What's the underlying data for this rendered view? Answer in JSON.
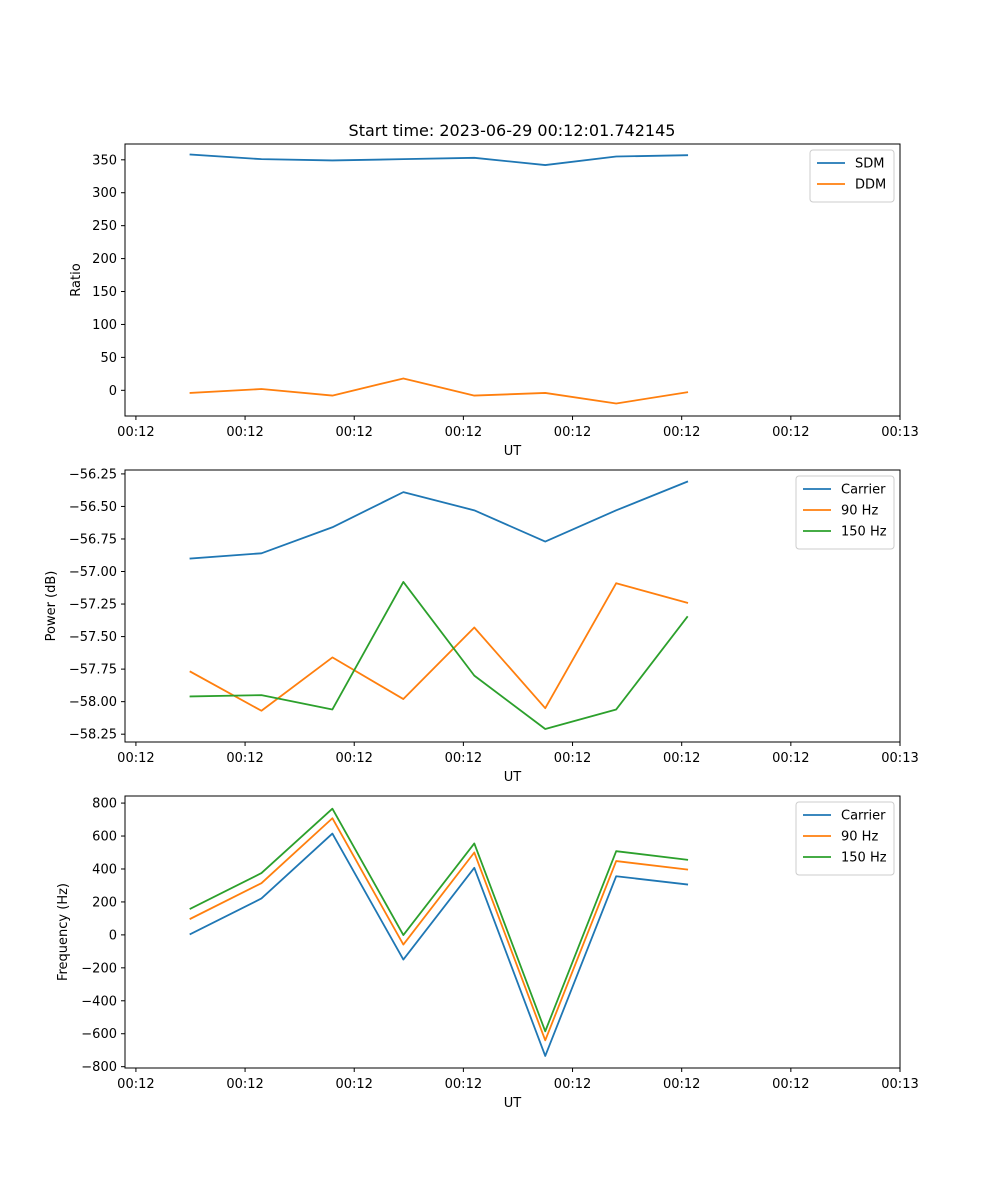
{
  "title": "Start time: 2023-06-29 00:12:01.742145",
  "chart_data": [
    {
      "type": "line",
      "ylabel": "Ratio",
      "xlabel": "UT",
      "x_tick_labels": [
        "00:12",
        "00:12",
        "00:12",
        "00:12",
        "00:12",
        "00:12",
        "00:12",
        "00:13"
      ],
      "x_ticks": [
        0,
        1,
        2,
        3,
        4,
        5,
        6,
        7
      ],
      "xlim": [
        -0.1,
        7.0
      ],
      "ylim": [
        -39,
        374
      ],
      "y_ticks": [
        0,
        50,
        100,
        150,
        200,
        250,
        300,
        350
      ],
      "y_tick_labels": [
        "0",
        "50",
        "100",
        "150",
        "200",
        "250",
        "300",
        "350"
      ],
      "x": [
        0.5,
        1.15,
        1.8,
        2.45,
        3.1,
        3.75,
        4.4,
        5.05
      ],
      "legend_position": "top-right",
      "series": [
        {
          "name": "SDM",
          "color": "#1f77b4",
          "values": [
            358,
            351,
            349,
            351,
            353,
            342,
            355,
            357
          ]
        },
        {
          "name": "DDM",
          "color": "#ff7f0e",
          "values": [
            -4,
            2,
            -8,
            18,
            -8,
            -4,
            -20,
            -3
          ]
        }
      ]
    },
    {
      "type": "line",
      "ylabel": "Power (dB)",
      "xlabel": "UT",
      "x_tick_labels": [
        "00:12",
        "00:12",
        "00:12",
        "00:12",
        "00:12",
        "00:12",
        "00:12",
        "00:13"
      ],
      "x_ticks": [
        0,
        1,
        2,
        3,
        4,
        5,
        6,
        7
      ],
      "xlim": [
        -0.1,
        7.0
      ],
      "ylim": [
        -58.31,
        -56.22
      ],
      "y_ticks": [
        -58.25,
        -58.0,
        -57.75,
        -57.5,
        -57.25,
        -57.0,
        -56.75,
        -56.5,
        -56.25
      ],
      "y_tick_labels": [
        "−58.25",
        "−58.00",
        "−57.75",
        "−57.50",
        "−57.25",
        "−57.00",
        "−56.75",
        "−56.50",
        "−56.25"
      ],
      "x": [
        0.5,
        1.15,
        1.8,
        2.45,
        3.1,
        3.75,
        4.4,
        5.05
      ],
      "legend_position": "top-right",
      "series": [
        {
          "name": "Carrier",
          "color": "#1f77b4",
          "values": [
            -56.9,
            -56.86,
            -56.66,
            -56.39,
            -56.53,
            -56.77,
            -56.53,
            -56.31
          ]
        },
        {
          "name": "90 Hz",
          "color": "#ff7f0e",
          "values": [
            -57.77,
            -58.07,
            -57.66,
            -57.98,
            -57.43,
            -58.05,
            -57.09,
            -57.24
          ]
        },
        {
          "name": "150 Hz",
          "color": "#2ca02c",
          "values": [
            -57.96,
            -57.95,
            -58.06,
            -57.08,
            -57.8,
            -58.21,
            -58.06,
            -57.35
          ]
        }
      ]
    },
    {
      "type": "line",
      "ylabel": "Frequency (Hz)",
      "xlabel": "UT",
      "x_tick_labels": [
        "00:12",
        "00:12",
        "00:12",
        "00:12",
        "00:12",
        "00:12",
        "00:12",
        "00:13"
      ],
      "x_ticks": [
        0,
        1,
        2,
        3,
        4,
        5,
        6,
        7
      ],
      "xlim": [
        -0.1,
        7.0
      ],
      "ylim": [
        -808,
        843
      ],
      "y_ticks": [
        -800,
        -600,
        -400,
        -200,
        0,
        200,
        400,
        600,
        800
      ],
      "y_tick_labels": [
        "−800",
        "−600",
        "−400",
        "−200",
        "0",
        "200",
        "400",
        "600",
        "800"
      ],
      "x": [
        0.5,
        1.15,
        1.8,
        2.45,
        3.1,
        3.75,
        4.4,
        5.05
      ],
      "legend_position": "top-right",
      "series": [
        {
          "name": "Carrier",
          "color": "#1f77b4",
          "values": [
            5,
            221,
            615,
            -150,
            407,
            -735,
            356,
            306
          ]
        },
        {
          "name": "90 Hz",
          "color": "#ff7f0e",
          "values": [
            98,
            314,
            708,
            -59,
            500,
            -640,
            448,
            397
          ]
        },
        {
          "name": "150 Hz",
          "color": "#2ca02c",
          "values": [
            159,
            375,
            766,
            -1,
            555,
            -585,
            508,
            456
          ]
        }
      ]
    }
  ]
}
